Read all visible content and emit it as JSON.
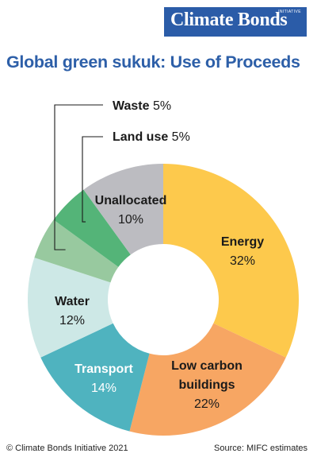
{
  "logo": {
    "text": "Climate Bonds",
    "tagline": "INITIATIVE"
  },
  "title": "Global green sukuk: Use of Proceeds",
  "chart_data": {
    "type": "pie",
    "style": "donut",
    "title": "Global green sukuk: Use of Proceeds",
    "categories": [
      "Energy",
      "Low carbon buildings",
      "Transport",
      "Water",
      "Waste",
      "Land use",
      "Unallocated"
    ],
    "values": [
      32,
      22,
      14,
      12,
      5,
      5,
      10
    ],
    "unit": "%",
    "slices": [
      {
        "label": "Energy",
        "value": 32,
        "value_label": "32%",
        "color": "#fdc94c"
      },
      {
        "label": "Low carbon buildings",
        "label_lines": [
          "Low carbon",
          "buildings"
        ],
        "value": 22,
        "value_label": "22%",
        "color": "#f7a663"
      },
      {
        "label": "Transport",
        "value": 14,
        "value_label": "14%",
        "color": "#4fb3bf"
      },
      {
        "label": "Water",
        "value": 12,
        "value_label": "12%",
        "color": "#cde8e6"
      },
      {
        "label": "Waste",
        "value": 5,
        "value_label": "5%",
        "color": "#98c99f"
      },
      {
        "label": "Land use",
        "value": 5,
        "value_label": "5%",
        "color": "#54b478"
      },
      {
        "label": "Unallocated",
        "value": 10,
        "value_label": "10%",
        "color": "#bcbcc1"
      }
    ],
    "legend": "none",
    "callouts": [
      "Waste",
      "Land use"
    ]
  },
  "footer": {
    "credit": "© Climate Bonds Initiative 2021",
    "source": "Source: MIFC estimates"
  }
}
